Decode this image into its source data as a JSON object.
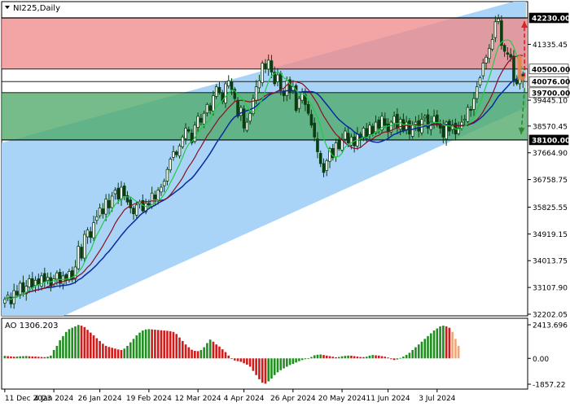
{
  "chart_title": "NI225,Daily",
  "indicator_label": "AO 1306.203",
  "colors": {
    "channel_fill": "#a9d4f7",
    "resistance_zone": "#f08a8a",
    "support_zone": "#4fa96a",
    "candle": "#0b3d10",
    "sma_fast": "#22cc44",
    "sma_mid": "#8a1020",
    "sma_slow": "#0a2aa0",
    "ao_up": "#1f8f1f",
    "ao_down": "#d11a1a",
    "ao_forecast": "#f3a57a",
    "arrow_up": "#e02020",
    "arrow_down": "#2a8a2a",
    "arrow_mid": "#e8864a"
  },
  "chart_data": [
    {
      "type": "candlestick",
      "title": "NI225,Daily",
      "x_tick_labels": [
        "11 Dec 2023",
        "4 Jan 2024",
        "26 Jan 2024",
        "19 Feb 2024",
        "12 Mar 2024",
        "4 Apr 2024",
        "26 Apr 2024",
        "20 May 2024",
        "11 Jun 2024",
        "3 Jul 2024"
      ],
      "y_tick_labels": [
        "41335.45",
        "39445.10",
        "38570.45",
        "37664.90",
        "36758.75",
        "35825.55",
        "34919.15",
        "34013.75",
        "33107.90",
        "32202.05"
      ],
      "ylim": [
        32202.05,
        42230
      ],
      "levels": [
        {
          "label": "42230.00",
          "value": 42230,
          "style": "dark"
        },
        {
          "label": "40500.00",
          "value": 40500,
          "style": "light"
        },
        {
          "label": "40076.00",
          "value": 40076,
          "style": "light"
        },
        {
          "label": "39700.00",
          "value": 39700,
          "style": "light"
        },
        {
          "label": "38100.00",
          "value": 38100,
          "style": "dark"
        }
      ],
      "zones": [
        {
          "name": "resistance",
          "from": 40500,
          "to": 42230
        },
        {
          "name": "support",
          "from": 38100,
          "to": 39700
        }
      ],
      "closes": [
        32700,
        32850,
        32550,
        33000,
        32850,
        33250,
        32950,
        33150,
        33400,
        33100,
        33350,
        33200,
        33500,
        33300,
        33450,
        33150,
        33400,
        33600,
        33250,
        33500,
        33350,
        33650,
        33400,
        33800,
        34500,
        34100,
        34900,
        35050,
        34800,
        35300,
        35500,
        35800,
        35600,
        36100,
        35800,
        36200,
        36400,
        36100,
        36500,
        36200,
        36000,
        35800,
        35600,
        35900,
        36000,
        35700,
        35950,
        35900,
        36300,
        36100,
        36400,
        36500,
        36700,
        37100,
        37450,
        37700,
        37600,
        37900,
        38200,
        38500,
        38400,
        38000,
        38600,
        38900,
        38700,
        39000,
        39300,
        39100,
        39600,
        39900,
        39700,
        39400,
        40000,
        40100,
        39800,
        39500,
        38900,
        39200,
        38500,
        38700,
        39000,
        39500,
        39900,
        40100,
        40700,
        40500,
        40800,
        40400,
        40000,
        40300,
        39800,
        39600,
        40100,
        39700,
        39900,
        39100,
        39500,
        39700,
        39300,
        39000,
        38600,
        38200,
        37700,
        37300,
        37000,
        37400,
        37800,
        37500,
        38000,
        37800,
        38100,
        38400,
        38000,
        38200,
        37900,
        38300,
        38100,
        38500,
        38200,
        38600,
        38300,
        38700,
        38500,
        38900,
        38600,
        38400,
        38700,
        38900,
        38500,
        38800,
        38400,
        38700,
        38300,
        38600,
        38700,
        38400,
        38800,
        38900,
        38500,
        38700,
        38900,
        38600,
        38500,
        38200,
        38700,
        38400,
        38600,
        38300,
        38500,
        38700,
        38800,
        39200,
        39100,
        39500,
        39900,
        40200,
        40700,
        40900,
        41200,
        41500,
        42100,
        42200,
        41300,
        41100,
        41000,
        40900,
        40100,
        40000,
        40300,
        40076
      ],
      "channel": {
        "upper": {
          "from": 38000,
          "to": 42900
        },
        "lower": {
          "from": 31200,
          "to": 39200
        }
      },
      "series": [
        {
          "name": "",
          "role": "sma_fast"
        },
        {
          "name": "",
          "role": "sma_mid"
        },
        {
          "name": "",
          "role": "sma_slow"
        }
      ]
    },
    {
      "type": "bar",
      "title": "AO 1306.203",
      "y_tick_labels": [
        "2413.696",
        "0.00",
        "-1857.22"
      ],
      "ylim": [
        -1857.22,
        2413.696
      ],
      "values": [
        180,
        160,
        140,
        120,
        130,
        150,
        160,
        170,
        150,
        140,
        130,
        110,
        100,
        90,
        120,
        200,
        600,
        900,
        1300,
        1600,
        1900,
        2100,
        2200,
        2300,
        2400,
        2350,
        2250,
        2050,
        1850,
        1650,
        1450,
        1250,
        1050,
        900,
        820,
        760,
        700,
        640,
        600,
        700,
        900,
        1150,
        1400,
        1650,
        1850,
        2000,
        2080,
        2100,
        2080,
        2060,
        2040,
        2020,
        2000,
        1980,
        1950,
        1900,
        1750,
        1500,
        1250,
        1000,
        800,
        620,
        540,
        520,
        600,
        800,
        1100,
        1350,
        1200,
        1000,
        850,
        650,
        450,
        200,
        0,
        -150,
        -200,
        -250,
        -350,
        -450,
        -600,
        -900,
        -1200,
        -1500,
        -1750,
        -1820,
        -1650,
        -1450,
        -1200,
        -1000,
        -850,
        -720,
        -600,
        -480,
        -400,
        -300,
        -200,
        -120,
        -60,
        0,
        100,
        220,
        260,
        280,
        240,
        200,
        160,
        120,
        80,
        100,
        150,
        180,
        200,
        190,
        160,
        130,
        100,
        90,
        120,
        200,
        240,
        220,
        200,
        160,
        120,
        60,
        -60,
        -120,
        -80,
        30,
        130,
        250,
        400,
        600,
        800,
        1000,
        1200,
        1400,
        1600,
        1800,
        2000,
        2150,
        2300,
        2350,
        2300,
        2200,
        1900,
        1400,
        900
      ]
    }
  ]
}
